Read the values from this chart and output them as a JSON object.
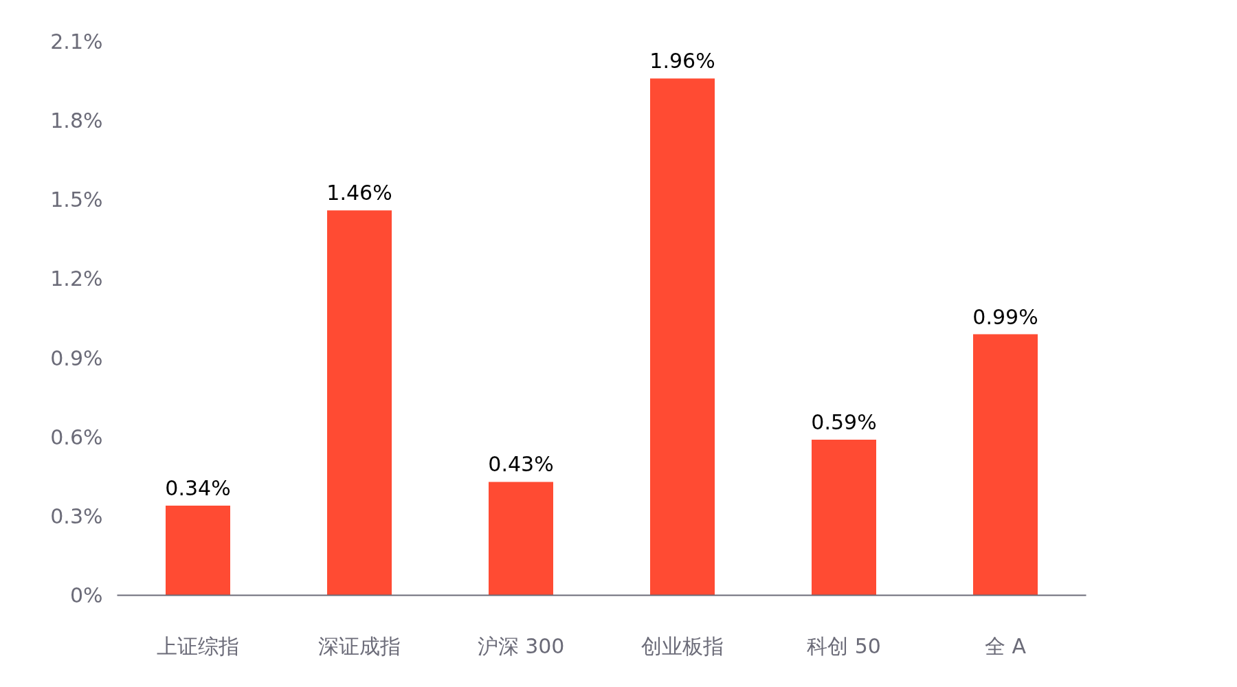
{
  "chart_data": {
    "type": "bar",
    "categories": [
      "上证综指",
      "深证成指",
      "沪深 300",
      "创业板指",
      "科创 50",
      "全 A"
    ],
    "values": [
      0.34,
      1.46,
      0.43,
      1.96,
      0.59,
      0.99
    ],
    "value_labels": [
      "0.34%",
      "1.46%",
      "0.43%",
      "1.96%",
      "0.59%",
      "0.99%"
    ],
    "color": "#ff4b33",
    "ylim": [
      0,
      2.1
    ],
    "yticks": [
      {
        "value": 0,
        "label": "0%"
      },
      {
        "value": 0.3,
        "label": "0.3%"
      },
      {
        "value": 0.6,
        "label": "0.6%"
      },
      {
        "value": 0.9,
        "label": "0.9%"
      },
      {
        "value": 1.2,
        "label": "1.2%"
      },
      {
        "value": 1.5,
        "label": "1.5%"
      },
      {
        "value": 1.8,
        "label": "1.8%"
      },
      {
        "value": 2.1,
        "label": "2.1%"
      }
    ],
    "grid": false
  }
}
